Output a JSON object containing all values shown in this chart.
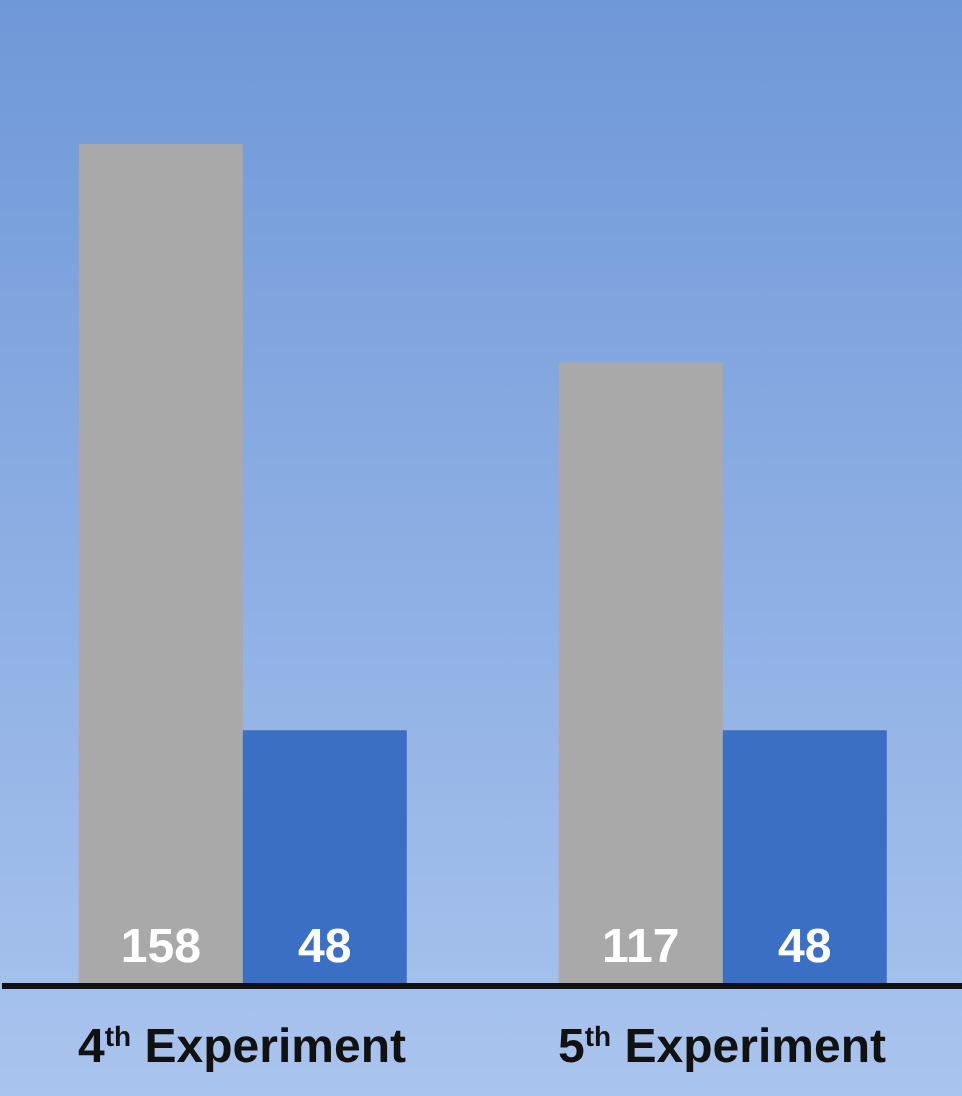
{
  "chart_data": {
    "type": "bar",
    "categories": [
      "4$^{th}$ Experiment",
      "5$^{th}$ Experiment"
    ],
    "series": [
      {
        "color": "#a9a9a9",
        "values": [
          158,
          117
        ]
      },
      {
        "color": "#3b6fc4",
        "values": [
          48,
          48
        ]
      }
    ],
    "ylim": [
      0,
      185
    ],
    "data_labels": true,
    "tick_labels": "x"
  }
}
